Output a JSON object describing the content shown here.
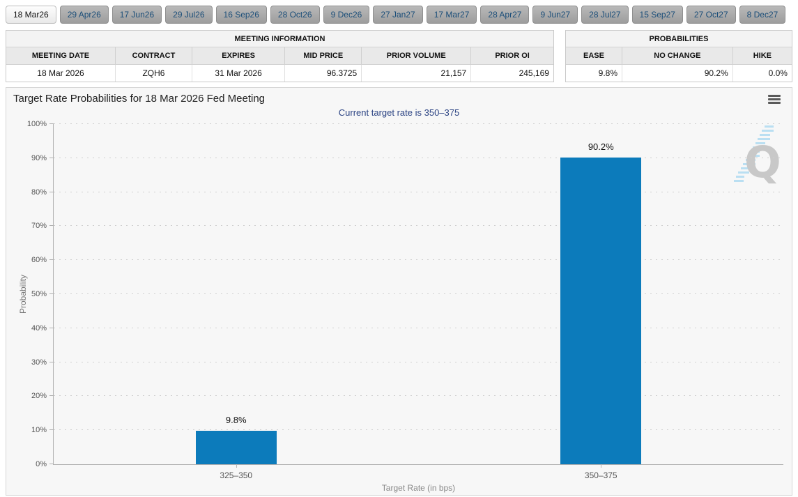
{
  "tabs": [
    {
      "label": "18 Mar26",
      "selected": true
    },
    {
      "label": "29 Apr26",
      "selected": false
    },
    {
      "label": "17 Jun26",
      "selected": false
    },
    {
      "label": "29 Jul26",
      "selected": false
    },
    {
      "label": "16 Sep26",
      "selected": false
    },
    {
      "label": "28 Oct26",
      "selected": false
    },
    {
      "label": "9 Dec26",
      "selected": false
    },
    {
      "label": "27 Jan27",
      "selected": false
    },
    {
      "label": "17 Mar27",
      "selected": false
    },
    {
      "label": "28 Apr27",
      "selected": false
    },
    {
      "label": "9 Jun27",
      "selected": false
    },
    {
      "label": "28 Jul27",
      "selected": false
    },
    {
      "label": "15 Sep27",
      "selected": false
    },
    {
      "label": "27 Oct27",
      "selected": false
    },
    {
      "label": "8 Dec27",
      "selected": false
    }
  ],
  "meeting_info": {
    "title": "MEETING INFORMATION",
    "columns": [
      "MEETING DATE",
      "CONTRACT",
      "EXPIRES",
      "MID PRICE",
      "PRIOR VOLUME",
      "PRIOR OI"
    ],
    "values": [
      "18 Mar 2026",
      "ZQH6",
      "31 Mar 2026",
      "96.3725",
      "21,157",
      "245,169"
    ]
  },
  "probabilities": {
    "title": "PROBABILITIES",
    "columns": [
      "EASE",
      "NO CHANGE",
      "HIKE"
    ],
    "values": [
      "9.8%",
      "90.2%",
      "0.0%"
    ]
  },
  "chart": {
    "title": "Target Rate Probabilities for 18 Mar 2026 Fed Meeting",
    "subtitle": "Current target rate is 350–375",
    "menu_icon": "hamburger-icon",
    "watermark_letter": "Q"
  },
  "chart_data": {
    "type": "bar",
    "categories": [
      "325–350",
      "350–375"
    ],
    "values": [
      9.8,
      90.2
    ],
    "data_labels": [
      "9.8%",
      "90.2%"
    ],
    "title": "Target Rate Probabilities for 18 Mar 2026 Fed Meeting",
    "subtitle": "Current target rate is 350–375",
    "xlabel": "Target Rate (in bps)",
    "ylabel": "Probability",
    "ylim": [
      0,
      100
    ],
    "yticks": [
      "0%",
      "10%",
      "20%",
      "30%",
      "40%",
      "50%",
      "60%",
      "70%",
      "80%",
      "90%",
      "100%"
    ],
    "grid": "horizontal-dotted",
    "legend": "none",
    "bar_color": "#0c7bbb"
  },
  "colors": {
    "bar": "#0c7bbb",
    "subtitle_text": "#2b4383",
    "tab_text": "#1b4e79",
    "panel_background": "#f7f7f7",
    "axis": "#b0b0b0",
    "watermark_gray": "#c8c8c8",
    "watermark_blue": "#badff2"
  }
}
